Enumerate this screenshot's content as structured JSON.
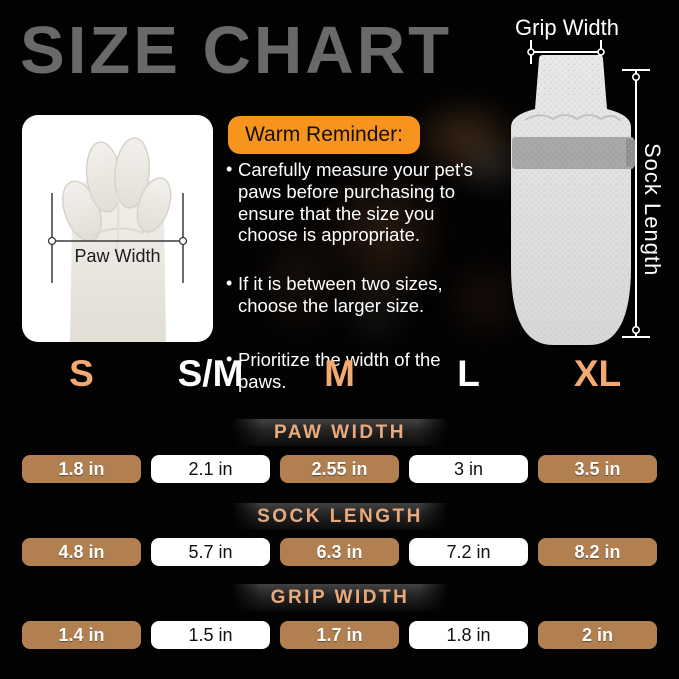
{
  "title": "SIZE CHART",
  "colors": {
    "accent_orange": "#F7941E",
    "cell_brown": "#B28050",
    "peach_text": "#F3AA72",
    "title_gray": "#696969"
  },
  "paw_diagram": {
    "measure_label": "Paw Width"
  },
  "sock_diagram": {
    "grip_label": "Grip Width",
    "length_label": "Sock Length"
  },
  "reminder": {
    "title": "Warm Reminder:",
    "bullets": [
      "Carefully measure your pet's paws before purchasing to ensure that the size you choose is appropriate.",
      "If it is between two sizes, choose the larger size.",
      "Prioritize the width of the paws."
    ]
  },
  "chart_data": {
    "type": "table",
    "title": "SIZE CHART",
    "columns": [
      "S",
      "S/M",
      "M",
      "L",
      "XL"
    ],
    "rows": [
      {
        "label": "PAW WIDTH",
        "values": [
          "1.8 in",
          "2.1 in",
          "2.55 in",
          "3 in",
          "3.5 in"
        ]
      },
      {
        "label": "SOCK LENGTH",
        "values": [
          "4.8 in",
          "5.7 in",
          "6.3 in",
          "7.2 in",
          "8.2 in"
        ]
      },
      {
        "label": "GRIP WIDTH",
        "values": [
          "1.4 in",
          "1.5 in",
          "1.7 in",
          "1.8 in",
          "2 in"
        ]
      }
    ]
  }
}
